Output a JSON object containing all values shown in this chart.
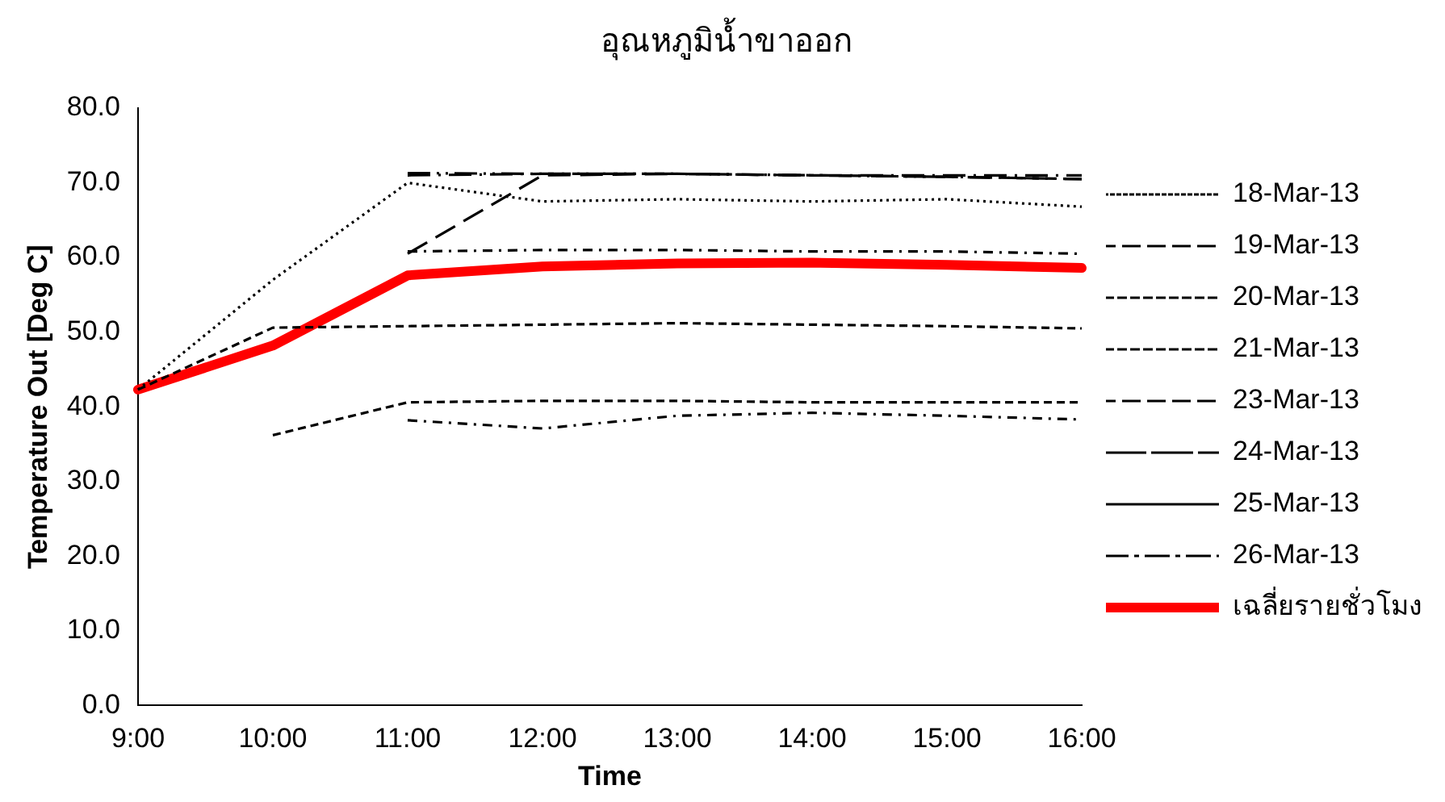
{
  "chart_data": {
    "type": "line",
    "title": "อุณหภูมิน้ำขาออก",
    "xlabel": "Time",
    "ylabel": "Temperature Out [Deg C]",
    "categories": [
      "9:00",
      "10:00",
      "11:00",
      "12:00",
      "13:00",
      "14:00",
      "15:00",
      "16:00"
    ],
    "ylim": [
      0,
      80
    ],
    "yticks": [
      {
        "value": 0,
        "label": "0.0"
      },
      {
        "value": 10,
        "label": "10.0"
      },
      {
        "value": 20,
        "label": "20.0"
      },
      {
        "value": 30,
        "label": "30.0"
      },
      {
        "value": 40,
        "label": "40.0"
      },
      {
        "value": 50,
        "label": "50.0"
      },
      {
        "value": 60,
        "label": "60.0"
      },
      {
        "value": 70,
        "label": "70.0"
      },
      {
        "value": 80,
        "label": "80.0"
      }
    ],
    "grid": false,
    "legend": "right",
    "marker": "none",
    "series": [
      {
        "name": "18-Mar-13",
        "color": "#000000",
        "line_style": "dotted",
        "values": [
          42.3,
          57,
          70,
          67.5,
          67.8,
          67.5,
          67.8,
          66.8
        ]
      },
      {
        "name": "19-Mar-13",
        "color": "#000000",
        "line_style": "dashdot",
        "values": [
          null,
          null,
          60.8,
          61,
          61,
          60.8,
          60.8,
          60.5
        ]
      },
      {
        "name": "20-Mar-13",
        "color": "#000000",
        "line_style": "dashed",
        "values": [
          42.3,
          50.6,
          50.8,
          51,
          51.2,
          51,
          50.8,
          50.5
        ]
      },
      {
        "name": "21-Mar-13",
        "color": "#000000",
        "line_style": "dashed",
        "values": [
          null,
          36.2,
          40.6,
          40.8,
          40.8,
          40.6,
          40.6,
          40.6
        ]
      },
      {
        "name": "23-Mar-13",
        "color": "#000000",
        "line_style": "dashdot",
        "values": [
          null,
          null,
          38.2,
          37.1,
          38.8,
          39.2,
          38.8,
          38.3
        ]
      },
      {
        "name": "24-Mar-13",
        "color": "#000000",
        "line_style": "dashdotdot",
        "values": [
          null,
          null,
          71.3,
          71.2,
          71.2,
          71,
          70.8,
          70.5
        ]
      },
      {
        "name": "25-Mar-13",
        "color": "#000000",
        "line_style": "longdash",
        "values": [
          null,
          null,
          60.5,
          71,
          71.2,
          71,
          70.8,
          70.5
        ]
      },
      {
        "name": "26-Mar-13",
        "color": "#000000",
        "line_style": "longdashdot",
        "values": [
          null,
          null,
          71,
          71.2,
          71.2,
          71,
          71,
          71
        ]
      },
      {
        "name": "เฉลี่ยรายชั่วโมง",
        "color": "#ff0000",
        "line_style": "solid",
        "values": [
          42.3,
          48.2,
          57.6,
          58.8,
          59.2,
          59.3,
          59,
          58.6
        ]
      }
    ]
  }
}
